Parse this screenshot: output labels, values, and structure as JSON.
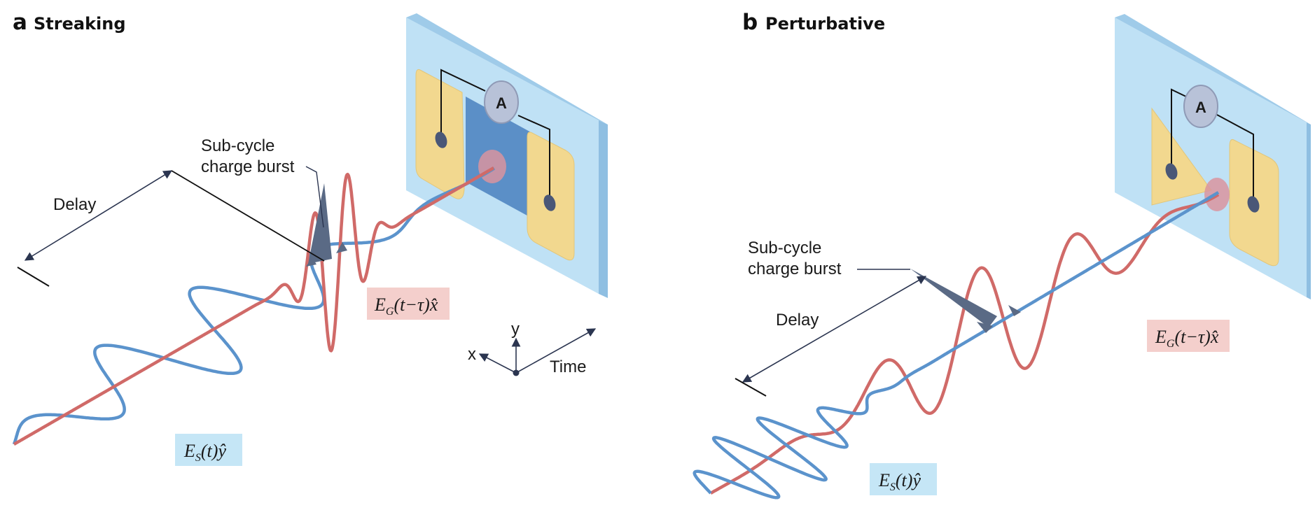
{
  "panels": {
    "a": {
      "letter": "a",
      "title": "Streaking",
      "burst_label_line1": "Sub-cycle",
      "burst_label_line2": "charge burst",
      "delay_label": "Delay",
      "ammeter_label": "A",
      "field_g": {
        "symbol": "E",
        "subscript": "G",
        "argument": "(t−τ)",
        "unit_vector": "x̂"
      },
      "field_s": {
        "symbol": "E",
        "subscript": "S",
        "argument": "(t)",
        "unit_vector": "ŷ"
      },
      "axes": {
        "x": "x",
        "y": "y",
        "time": "Time"
      }
    },
    "b": {
      "letter": "b",
      "title": "Perturbative",
      "burst_label_line1": "Sub-cycle",
      "burst_label_line2": "charge burst",
      "delay_label": "Delay",
      "ammeter_label": "A",
      "field_g": {
        "symbol": "E",
        "subscript": "G",
        "argument": "(t−τ)",
        "unit_vector": "x̂"
      },
      "field_s": {
        "symbol": "E",
        "subscript": "S",
        "argument": "(t)",
        "unit_vector": "ŷ"
      }
    }
  },
  "colors": {
    "gate_wave": "#d06a68",
    "signal_wave": "#5b93cc",
    "device_face": "#bfe1f5",
    "device_edge": "#8fbfe2",
    "electrode": "#f2d88f",
    "channel": "#5b8fc7",
    "spot": "#d9949f",
    "burst": "#5a6a85",
    "label_g_bg": "#f4cfcc",
    "label_s_bg": "#c5e6f6"
  }
}
